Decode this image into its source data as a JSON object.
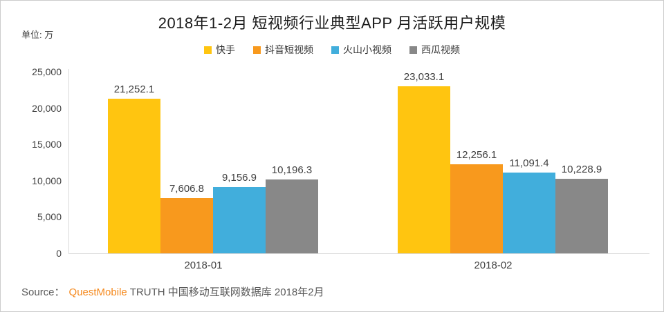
{
  "title": "2018年1-2月 短视频行业典型APP 月活跃用户规模",
  "unit_label": "单位: 万",
  "chart_data": {
    "type": "bar",
    "categories": [
      "2018-01",
      "2018-02"
    ],
    "series": [
      {
        "id": "kuaishou",
        "name": "快手",
        "color": "#FFC510",
        "values": [
          21252.1,
          23033.1
        ]
      },
      {
        "id": "douyin",
        "name": "抖音短视频",
        "color": "#F8991D",
        "values": [
          7606.8,
          12256.1
        ]
      },
      {
        "id": "huoshan",
        "name": "火山小视频",
        "color": "#41AEDC",
        "values": [
          9156.9,
          11091.4
        ]
      },
      {
        "id": "xigua",
        "name": "西瓜视频",
        "color": "#888888",
        "values": [
          10196.3,
          10228.9
        ]
      }
    ],
    "data_labels": [
      [
        "21,252.1",
        "23,033.1"
      ],
      [
        "7,606.8",
        "12,256.1"
      ],
      [
        "9,156.9",
        "11,091.4"
      ],
      [
        "10,196.3",
        "10,228.9"
      ]
    ],
    "ylim": [
      0,
      25000
    ],
    "yticks": [
      {
        "value": 25000,
        "label": "25,000"
      },
      {
        "value": 20000,
        "label": "20,000"
      },
      {
        "value": 15000,
        "label": "15,000"
      },
      {
        "value": 10000,
        "label": "10,000"
      },
      {
        "value": 5000,
        "label": "5,000"
      },
      {
        "value": 0,
        "label": "0"
      }
    ],
    "grid": false,
    "legend_position": "top"
  },
  "source": {
    "prefix": "Source：",
    "brand": "QuestMobile",
    "brand_color": "#F5891D",
    "suffix": "TRUTH 中国移动互联网数据库 2018年2月"
  }
}
